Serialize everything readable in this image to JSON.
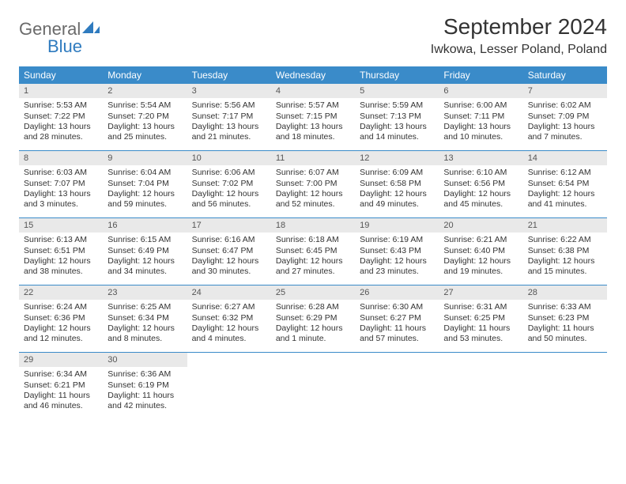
{
  "brand": {
    "general": "General",
    "blue": "Blue"
  },
  "title": {
    "month": "September 2024",
    "location": "Iwkowa, Lesser Poland, Poland"
  },
  "colors": {
    "header_bg": "#3a8bc9",
    "daynum_bg": "#e9e9e9",
    "row_border": "#3a8bc9",
    "text": "#333333",
    "logo_gray": "#6a6a6a",
    "logo_blue": "#2f7bbf",
    "page_bg": "#ffffff"
  },
  "weekdays": [
    "Sunday",
    "Monday",
    "Tuesday",
    "Wednesday",
    "Thursday",
    "Friday",
    "Saturday"
  ],
  "weeks": [
    [
      {
        "n": "1",
        "sr": "Sunrise: 5:53 AM",
        "ss": "Sunset: 7:22 PM",
        "d1": "Daylight: 13 hours",
        "d2": "and 28 minutes."
      },
      {
        "n": "2",
        "sr": "Sunrise: 5:54 AM",
        "ss": "Sunset: 7:20 PM",
        "d1": "Daylight: 13 hours",
        "d2": "and 25 minutes."
      },
      {
        "n": "3",
        "sr": "Sunrise: 5:56 AM",
        "ss": "Sunset: 7:17 PM",
        "d1": "Daylight: 13 hours",
        "d2": "and 21 minutes."
      },
      {
        "n": "4",
        "sr": "Sunrise: 5:57 AM",
        "ss": "Sunset: 7:15 PM",
        "d1": "Daylight: 13 hours",
        "d2": "and 18 minutes."
      },
      {
        "n": "5",
        "sr": "Sunrise: 5:59 AM",
        "ss": "Sunset: 7:13 PM",
        "d1": "Daylight: 13 hours",
        "d2": "and 14 minutes."
      },
      {
        "n": "6",
        "sr": "Sunrise: 6:00 AM",
        "ss": "Sunset: 7:11 PM",
        "d1": "Daylight: 13 hours",
        "d2": "and 10 minutes."
      },
      {
        "n": "7",
        "sr": "Sunrise: 6:02 AM",
        "ss": "Sunset: 7:09 PM",
        "d1": "Daylight: 13 hours",
        "d2": "and 7 minutes."
      }
    ],
    [
      {
        "n": "8",
        "sr": "Sunrise: 6:03 AM",
        "ss": "Sunset: 7:07 PM",
        "d1": "Daylight: 13 hours",
        "d2": "and 3 minutes."
      },
      {
        "n": "9",
        "sr": "Sunrise: 6:04 AM",
        "ss": "Sunset: 7:04 PM",
        "d1": "Daylight: 12 hours",
        "d2": "and 59 minutes."
      },
      {
        "n": "10",
        "sr": "Sunrise: 6:06 AM",
        "ss": "Sunset: 7:02 PM",
        "d1": "Daylight: 12 hours",
        "d2": "and 56 minutes."
      },
      {
        "n": "11",
        "sr": "Sunrise: 6:07 AM",
        "ss": "Sunset: 7:00 PM",
        "d1": "Daylight: 12 hours",
        "d2": "and 52 minutes."
      },
      {
        "n": "12",
        "sr": "Sunrise: 6:09 AM",
        "ss": "Sunset: 6:58 PM",
        "d1": "Daylight: 12 hours",
        "d2": "and 49 minutes."
      },
      {
        "n": "13",
        "sr": "Sunrise: 6:10 AM",
        "ss": "Sunset: 6:56 PM",
        "d1": "Daylight: 12 hours",
        "d2": "and 45 minutes."
      },
      {
        "n": "14",
        "sr": "Sunrise: 6:12 AM",
        "ss": "Sunset: 6:54 PM",
        "d1": "Daylight: 12 hours",
        "d2": "and 41 minutes."
      }
    ],
    [
      {
        "n": "15",
        "sr": "Sunrise: 6:13 AM",
        "ss": "Sunset: 6:51 PM",
        "d1": "Daylight: 12 hours",
        "d2": "and 38 minutes."
      },
      {
        "n": "16",
        "sr": "Sunrise: 6:15 AM",
        "ss": "Sunset: 6:49 PM",
        "d1": "Daylight: 12 hours",
        "d2": "and 34 minutes."
      },
      {
        "n": "17",
        "sr": "Sunrise: 6:16 AM",
        "ss": "Sunset: 6:47 PM",
        "d1": "Daylight: 12 hours",
        "d2": "and 30 minutes."
      },
      {
        "n": "18",
        "sr": "Sunrise: 6:18 AM",
        "ss": "Sunset: 6:45 PM",
        "d1": "Daylight: 12 hours",
        "d2": "and 27 minutes."
      },
      {
        "n": "19",
        "sr": "Sunrise: 6:19 AM",
        "ss": "Sunset: 6:43 PM",
        "d1": "Daylight: 12 hours",
        "d2": "and 23 minutes."
      },
      {
        "n": "20",
        "sr": "Sunrise: 6:21 AM",
        "ss": "Sunset: 6:40 PM",
        "d1": "Daylight: 12 hours",
        "d2": "and 19 minutes."
      },
      {
        "n": "21",
        "sr": "Sunrise: 6:22 AM",
        "ss": "Sunset: 6:38 PM",
        "d1": "Daylight: 12 hours",
        "d2": "and 15 minutes."
      }
    ],
    [
      {
        "n": "22",
        "sr": "Sunrise: 6:24 AM",
        "ss": "Sunset: 6:36 PM",
        "d1": "Daylight: 12 hours",
        "d2": "and 12 minutes."
      },
      {
        "n": "23",
        "sr": "Sunrise: 6:25 AM",
        "ss": "Sunset: 6:34 PM",
        "d1": "Daylight: 12 hours",
        "d2": "and 8 minutes."
      },
      {
        "n": "24",
        "sr": "Sunrise: 6:27 AM",
        "ss": "Sunset: 6:32 PM",
        "d1": "Daylight: 12 hours",
        "d2": "and 4 minutes."
      },
      {
        "n": "25",
        "sr": "Sunrise: 6:28 AM",
        "ss": "Sunset: 6:29 PM",
        "d1": "Daylight: 12 hours",
        "d2": "and 1 minute."
      },
      {
        "n": "26",
        "sr": "Sunrise: 6:30 AM",
        "ss": "Sunset: 6:27 PM",
        "d1": "Daylight: 11 hours",
        "d2": "and 57 minutes."
      },
      {
        "n": "27",
        "sr": "Sunrise: 6:31 AM",
        "ss": "Sunset: 6:25 PM",
        "d1": "Daylight: 11 hours",
        "d2": "and 53 minutes."
      },
      {
        "n": "28",
        "sr": "Sunrise: 6:33 AM",
        "ss": "Sunset: 6:23 PM",
        "d1": "Daylight: 11 hours",
        "d2": "and 50 minutes."
      }
    ],
    [
      {
        "n": "29",
        "sr": "Sunrise: 6:34 AM",
        "ss": "Sunset: 6:21 PM",
        "d1": "Daylight: 11 hours",
        "d2": "and 46 minutes."
      },
      {
        "n": "30",
        "sr": "Sunrise: 6:36 AM",
        "ss": "Sunset: 6:19 PM",
        "d1": "Daylight: 11 hours",
        "d2": "and 42 minutes."
      },
      null,
      null,
      null,
      null,
      null
    ]
  ]
}
